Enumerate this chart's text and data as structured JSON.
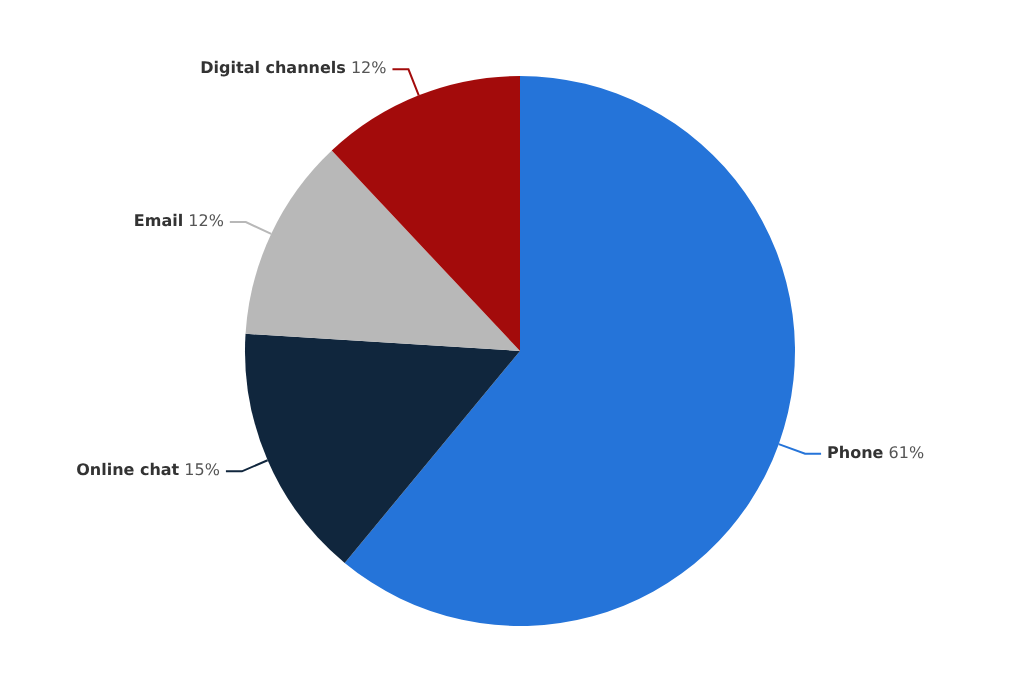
{
  "chart_data": {
    "type": "pie",
    "categories": [
      "Phone",
      "Online chat",
      "Email",
      "Digital channels"
    ],
    "values": [
      61,
      15,
      12,
      12
    ],
    "colors": [
      "#2574d9",
      "#10263d",
      "#b8b8b8",
      "#a30b0b"
    ],
    "value_labels": [
      "61%",
      "15%",
      "12%",
      "12%"
    ],
    "legend": false
  }
}
